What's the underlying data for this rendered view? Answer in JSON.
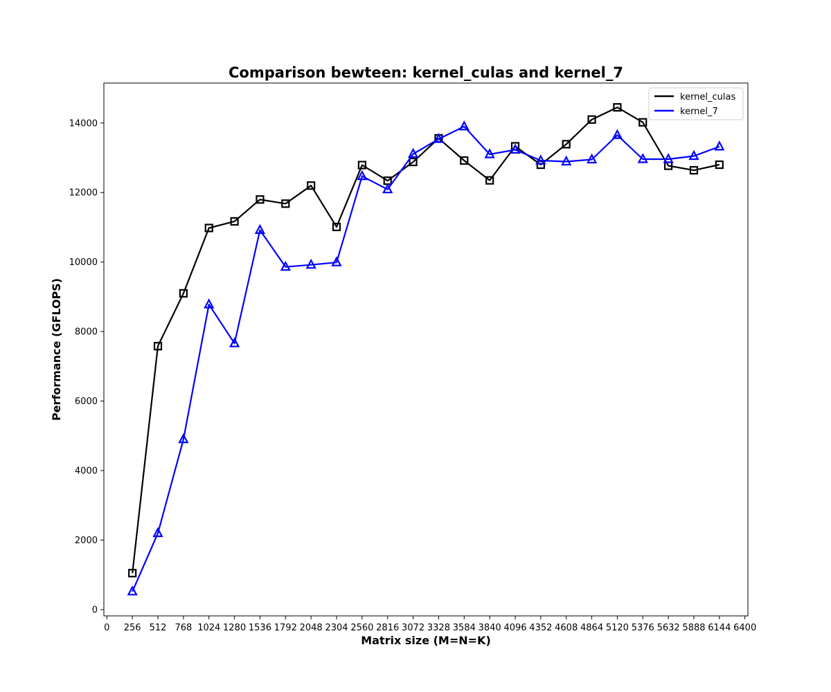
{
  "chart_data": {
    "type": "line",
    "title": "Comparison bewteen: kernel_culas and kernel_7",
    "xlabel": "Matrix size (M=N=K)",
    "ylabel": "Performance (GFLOPS)",
    "xlim": [
      -30,
      6430
    ],
    "ylim": [
      -180,
      15150
    ],
    "xticks": [
      0,
      256,
      512,
      768,
      1024,
      1280,
      1536,
      1792,
      2048,
      2304,
      2560,
      2816,
      3072,
      3328,
      3584,
      3840,
      4096,
      4352,
      4608,
      4864,
      5120,
      5376,
      5632,
      5888,
      6144,
      6400
    ],
    "yticks": [
      0,
      2000,
      4000,
      6000,
      8000,
      10000,
      12000,
      14000
    ],
    "grid": false,
    "legend_position": "top-right",
    "x": [
      256,
      512,
      768,
      1024,
      1280,
      1536,
      1792,
      2048,
      2304,
      2560,
      2816,
      3072,
      3328,
      3584,
      3840,
      4096,
      4352,
      4608,
      4864,
      5120,
      5376,
      5632,
      5888,
      6144
    ],
    "series": [
      {
        "name": "kernel_culas",
        "color": "#000000",
        "marker": "square",
        "values": [
          1050,
          7580,
          9100,
          10980,
          11170,
          11800,
          11680,
          12200,
          11010,
          12790,
          12340,
          12880,
          13560,
          12920,
          12350,
          13330,
          12800,
          13390,
          14100,
          14450,
          14020,
          12770,
          12640,
          12800
        ]
      },
      {
        "name": "kernel_7",
        "color": "#0000ff",
        "marker": "triangle",
        "values": [
          520,
          2200,
          4900,
          8780,
          7660,
          10920,
          9860,
          9920,
          9990,
          12470,
          12090,
          13110,
          13540,
          13900,
          13100,
          13230,
          12920,
          12890,
          12950,
          13650,
          12960,
          12960,
          13050,
          13320
        ]
      }
    ]
  }
}
